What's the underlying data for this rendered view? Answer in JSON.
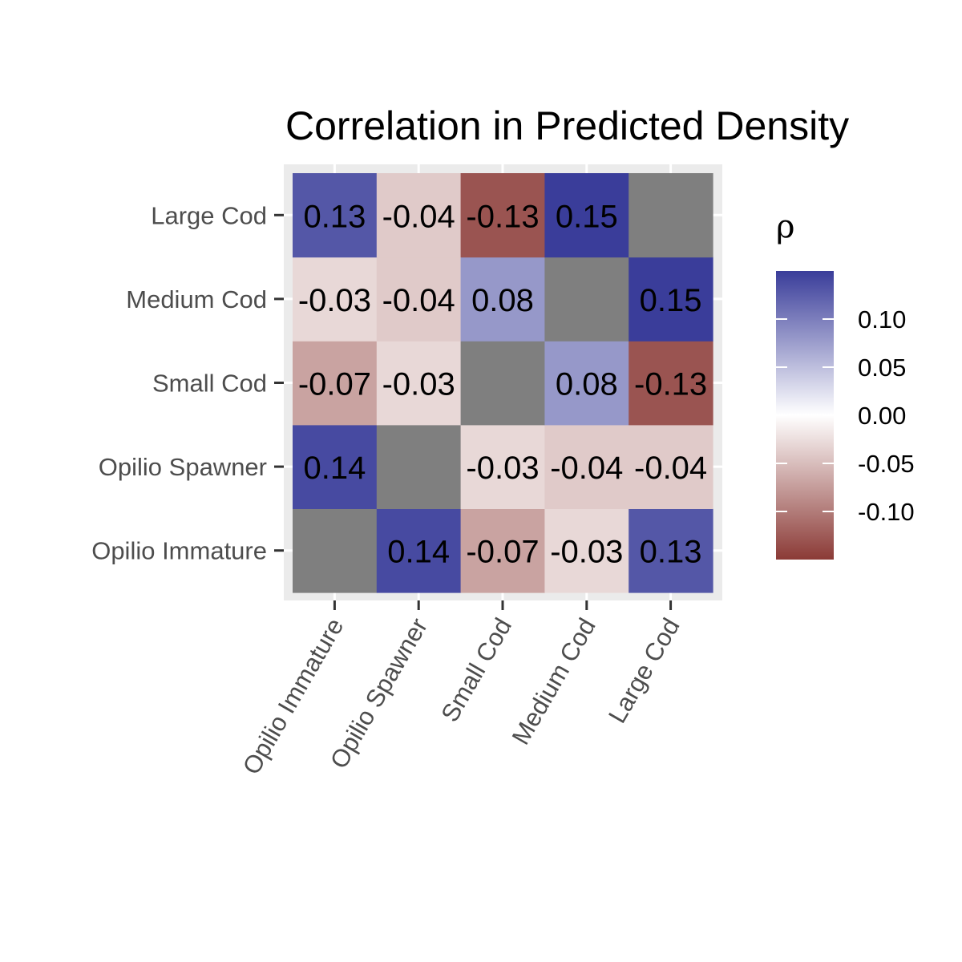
{
  "chart_data": {
    "type": "heatmap",
    "title": "Correlation in Predicted Density",
    "x_categories": [
      "Opilio Immature",
      "Opilio Spawner",
      "Small Cod",
      "Medium Cod",
      "Large Cod"
    ],
    "y_categories": [
      "Opilio Immature",
      "Opilio Spawner",
      "Small Cod",
      "Medium Cod",
      "Large Cod"
    ],
    "matrix": [
      [
        null,
        0.14,
        -0.07,
        -0.03,
        0.13
      ],
      [
        0.14,
        null,
        -0.03,
        -0.04,
        -0.04
      ],
      [
        -0.07,
        -0.03,
        null,
        0.08,
        -0.13
      ],
      [
        -0.03,
        -0.04,
        0.08,
        null,
        0.15
      ],
      [
        0.13,
        -0.04,
        -0.13,
        0.15,
        null
      ]
    ],
    "cell_labels": [
      [
        "",
        "0.14",
        "-0.07",
        "-0.03",
        "0.13"
      ],
      [
        "0.14",
        "",
        "-0.03",
        "-0.04",
        "-0.04"
      ],
      [
        "-0.07",
        "-0.03",
        "",
        "0.08",
        "-0.13"
      ],
      [
        "-0.03",
        "-0.04",
        "0.08",
        "",
        "0.15"
      ],
      [
        "0.13",
        "-0.04",
        "-0.13",
        "0.15",
        ""
      ]
    ],
    "diagonal_color": "#7f7f7f",
    "legend": {
      "title": "ρ",
      "placement": "right",
      "range": [
        -0.15,
        0.15
      ],
      "breaks": [
        0.1,
        0.05,
        0.0,
        -0.05,
        -0.1
      ],
      "break_labels": [
        "0.10",
        "0.05",
        "0.00",
        "-0.05",
        "-0.10"
      ],
      "low_color": "#8b3a36",
      "mid_color": "#ffffff",
      "high_color": "#3a3d9a"
    },
    "panel_background": "#ebebeb",
    "grid": true
  }
}
